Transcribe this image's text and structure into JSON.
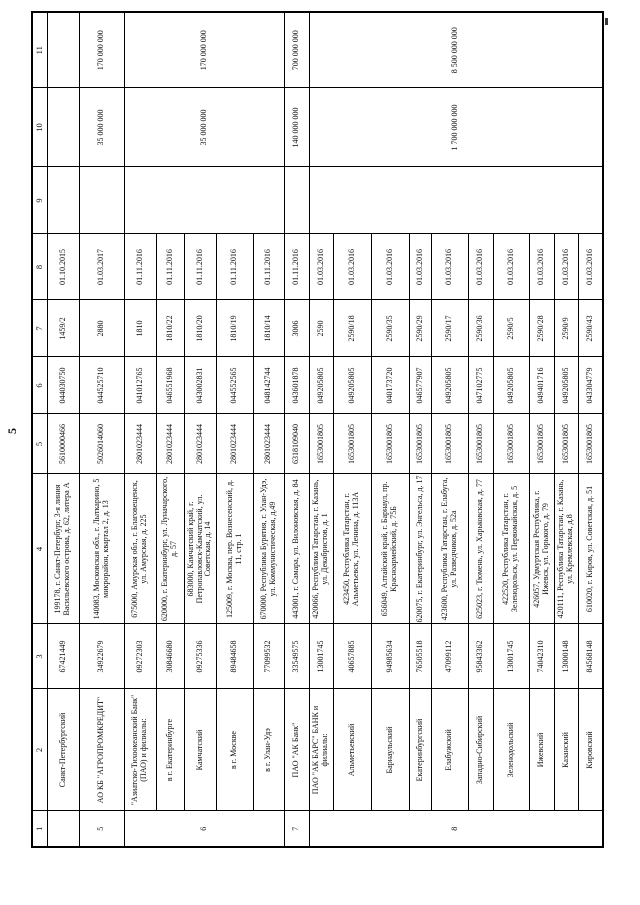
{
  "page": {
    "number": "5"
  },
  "table": {
    "header": [
      "1",
      "2",
      "3",
      "4",
      "5",
      "6",
      "7",
      "8",
      "9",
      "10",
      "11"
    ],
    "rows": [
      [
        "",
        "Санкт-Петербургский",
        "67421449",
        "199178, г. Санкт-Петербург, 3-я линия Васильевского острова, д. 62, литера А",
        "5610000466",
        "044030750",
        "1459/2",
        "01.10.2015",
        "",
        "",
        ""
      ],
      [
        "5",
        "АО КБ \"АГРОПРОМКРЕДИТ\"",
        "34922679",
        "140083, Московская обл., г. Лыткарино, 5 микрорайон, квартал 2, д. 13",
        "5026014060",
        "044525710",
        "2880",
        "01.03.2017",
        "",
        "35 000 000",
        "170 000 000"
      ],
      [
        "6",
        "\"Азиатско-Тихоокеанский Банк\" (ПАО) и филиалы:",
        "09272303",
        "675000, Амурская обл., г. Благовещенск, ул. Амурская, д. 225",
        "2801023444",
        "041012765",
        "1810",
        "01.11.2016",
        "",
        "35 000 000",
        "170 000 000"
      ],
      [
        "в г. Екатеринбурге",
        "30846680",
        "620000, г. Екатеринбург, ул. Луначарского, д. 57",
        "2801023444",
        "046551968",
        "1810/22",
        "01.11.2016"
      ],
      [
        "Камчатский",
        "09275336",
        "683000, Камчатский край, г. Петропавловск-Камчатский, ул. Советская, д. 14",
        "2801023444",
        "043002831",
        "1810/20",
        "01.11.2016"
      ],
      [
        "в г. Москве",
        "89484658",
        "125009, г. Москва, пер. Вознесенский, д. 11, стр. 1",
        "2801023444",
        "044552565",
        "1810/19",
        "01.11.2016"
      ],
      [
        "в г. Улан-Удэ",
        "77099532",
        "670000, Республика Бурятия, г. Улан-Удэ, ул. Коммунистическая, д.49",
        "2801023444",
        "048142744",
        "1810/14",
        "01.11.2016"
      ],
      [
        "7",
        "ПАО \"АК Банк\"",
        "33549575",
        "443001, г. Самара, ул. Вилоновская, д. 84",
        "6318109040",
        "043601878",
        "3006",
        "01.11.2016",
        "",
        "140 000 000",
        "700 000 000"
      ],
      [
        "8",
        "ПАО \"АК БАРС\" БАНК и филиалы:",
        "13001745",
        "420066, Республика Татарстан, г. Казань, ул. Декабристов, д. 1",
        "1653001805",
        "049205805",
        "2590",
        "01.03.2016",
        "",
        "1 700 000 000",
        "8 500 000 000"
      ],
      [
        "Альметьевский",
        "40657885",
        "423450, Республика Татарстан, г. Альметьевск, ул. Ленина, д. 113А",
        "1653001805",
        "049205805",
        "2590/18",
        "01.03.2016"
      ],
      [
        "Барнаульский",
        "94985634",
        "656049, Алтайский край, г. Барнаул, пр. Красноармейский, д. 75Б",
        "1653001805",
        "040173720",
        "2590/35",
        "01.03.2016"
      ],
      [
        "Екатеринбургский",
        "76505518",
        "620075, г. Екатеринбург, ул. Энгельса, д. 17",
        "1653001805",
        "046577907",
        "2590/29",
        "01.03.2016"
      ],
      [
        "Елабужский",
        "47099112",
        "423600, Республика Татарстан, г. Елабуга, ул. Разведчиков, д. 52а",
        "1653001805",
        "049205805",
        "2590/17",
        "01.03.2016"
      ],
      [
        "Западно-Сибирский",
        "95843362",
        "625023, г. Тюмень, ул. Харьковская, д. 77",
        "1653001805",
        "047102775",
        "2590/36",
        "01.03.2016"
      ],
      [
        "Зеленодольский",
        "13001745",
        "422520, Республика Татарстан, г. Зеленодольск, ул. Первомайская, д. 5",
        "1653001805",
        "049205805",
        "2590/5",
        "01.03.2016"
      ],
      [
        "Ижевский",
        "74042310",
        "426057, Удмуртская Республика, г. Ижевск, ул. Горького, д. 79",
        "1653001805",
        "049401716",
        "2590/28",
        "01.03.2016"
      ],
      [
        "Казанский",
        "13000148",
        "420111, Республика Татарстан, г. Казань, ул. Кремлевская, д.8",
        "1653001805",
        "049205805",
        "2590/9",
        "01.03.2016"
      ],
      [
        "Кировский",
        "84568148",
        "610020, г. Киров, ул. Советская, д. 51",
        "1653001805",
        "043304779",
        "2590/43",
        "01.03.2016"
      ]
    ],
    "merges": [
      {
        "row": 2,
        "col": 1,
        "rowspan": 5
      },
      {
        "row": 2,
        "col": 9,
        "rowspan": 5
      },
      {
        "row": 2,
        "col": 10,
        "rowspan": 5
      },
      {
        "row": 2,
        "col": 11,
        "rowspan": 5
      },
      {
        "row": 8,
        "col": 1,
        "rowspan": 10
      },
      {
        "row": 8,
        "col": 9,
        "rowspan": 10
      },
      {
        "row": 8,
        "col": 10,
        "rowspan": 10
      },
      {
        "row": 8,
        "col": 11,
        "rowspan": 10
      }
    ]
  }
}
